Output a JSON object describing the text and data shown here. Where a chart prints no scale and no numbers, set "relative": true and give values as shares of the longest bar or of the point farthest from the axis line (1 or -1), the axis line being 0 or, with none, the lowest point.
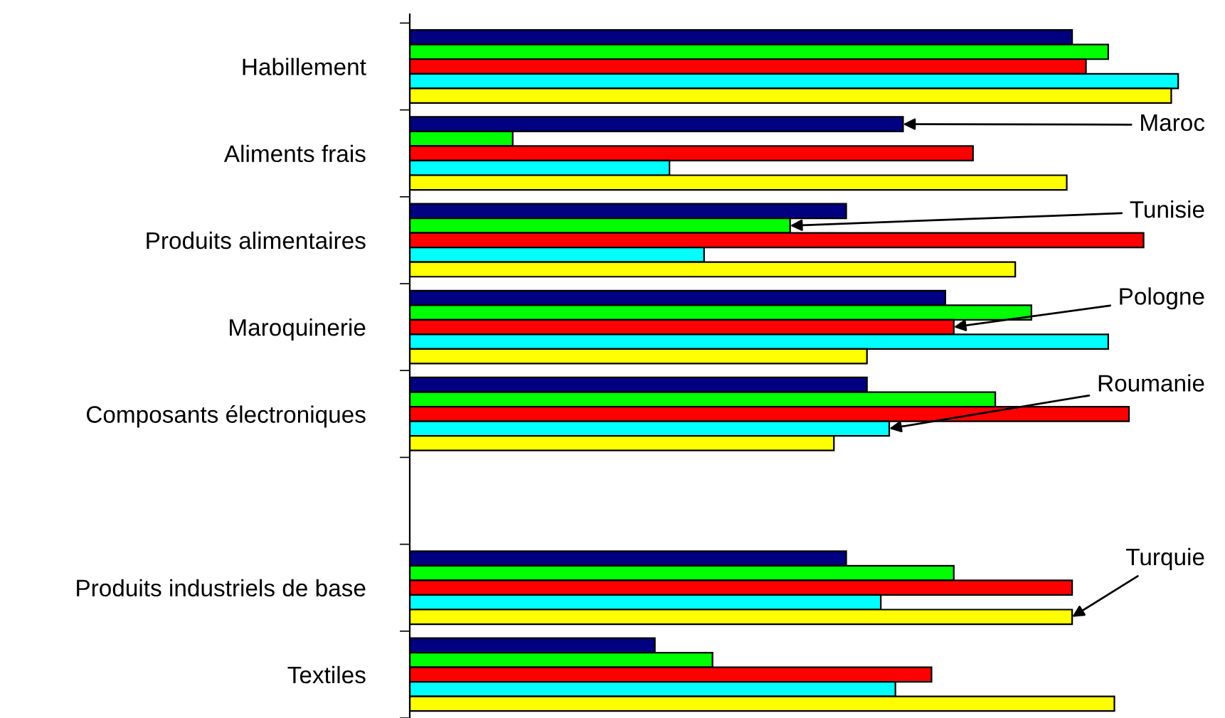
{
  "chart_data": {
    "type": "bar",
    "orientation": "horizontal",
    "relative": true,
    "categories": [
      "Habillement",
      "Aliments frais",
      "Produits alimentaires",
      "Maroquinerie",
      "Composants électroniques",
      null,
      "Produits industriels de base",
      "Textiles"
    ],
    "series": [
      {
        "name": "Maroc",
        "color": "#000080",
        "values": [
          0.862,
          0.642,
          0.568,
          0.697,
          0.595,
          null,
          0.568,
          0.319
        ]
      },
      {
        "name": "Tunisie",
        "color": "#00ff00",
        "values": [
          0.909,
          0.134,
          0.495,
          0.809,
          0.762,
          null,
          0.708,
          0.394
        ]
      },
      {
        "name": "Pologne",
        "color": "#ff0000",
        "values": [
          0.88,
          0.733,
          0.955,
          0.708,
          0.936,
          null,
          0.862,
          0.679
        ]
      },
      {
        "name": "Roumanie",
        "color": "#00ffff",
        "values": [
          1,
          0.338,
          0.383,
          0.909,
          0.624,
          null,
          0.613,
          0.632
        ]
      },
      {
        "name": "Turquie",
        "color": "#ffff00",
        "values": [
          0.991,
          0.855,
          0.788,
          0.595,
          0.552,
          null,
          0.862,
          0.917
        ]
      }
    ],
    "grid": false,
    "legend": false
  }
}
